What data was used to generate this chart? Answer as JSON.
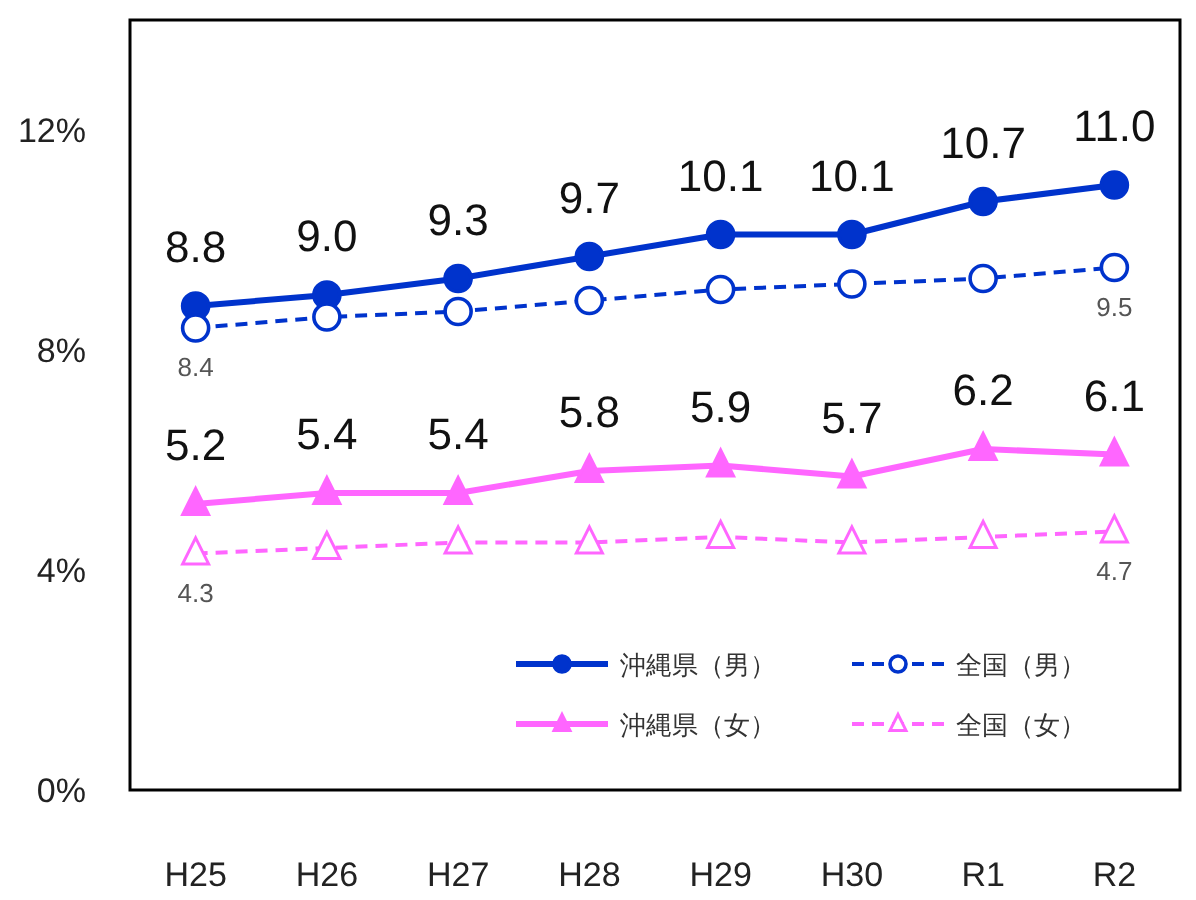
{
  "chart_data": {
    "type": "line",
    "categories": [
      "H25",
      "H26",
      "H27",
      "H28",
      "H29",
      "H30",
      "R1",
      "R2"
    ],
    "ylim": [
      0,
      14
    ],
    "yticks": [
      {
        "value": 0,
        "label": "0%"
      },
      {
        "value": 4,
        "label": "4%"
      },
      {
        "value": 8,
        "label": "8%"
      },
      {
        "value": 12,
        "label": "12%"
      }
    ],
    "grid": false,
    "legend": "bottom right",
    "series": [
      {
        "name": "沖縄県（男）",
        "color": "#0033cc",
        "marker": "circle",
        "line_style": "solid",
        "values": [
          8.8,
          9.0,
          9.3,
          9.7,
          10.1,
          10.1,
          10.7,
          11.0
        ],
        "value_labels": [
          "8.8",
          "9.0",
          "9.3",
          "9.7",
          "10.1",
          "10.1",
          "10.7",
          "11.0"
        ]
      },
      {
        "name": "全国（男）",
        "color": "#0033cc",
        "marker": "circle",
        "line_style": "dashed",
        "values": [
          8.4,
          8.6,
          8.7,
          8.9,
          9.1,
          9.2,
          9.3,
          9.5
        ],
        "value_labels": [
          "8.4",
          null,
          null,
          null,
          null,
          null,
          null,
          "9.5"
        ]
      },
      {
        "name": "沖縄県（女）",
        "color": "#ff66ff",
        "marker": "triangle",
        "line_style": "solid",
        "values": [
          5.2,
          5.4,
          5.4,
          5.8,
          5.9,
          5.7,
          6.2,
          6.1
        ],
        "value_labels": [
          "5.2",
          "5.4",
          "5.4",
          "5.8",
          "5.9",
          "5.7",
          "6.2",
          "6.1"
        ]
      },
      {
        "name": "全国（女）",
        "color": "#ff66ff",
        "marker": "triangle",
        "line_style": "dashed",
        "values": [
          4.3,
          4.4,
          4.5,
          4.5,
          4.6,
          4.5,
          4.6,
          4.7
        ],
        "value_labels": [
          "4.3",
          null,
          null,
          null,
          null,
          null,
          null,
          "4.7"
        ]
      }
    ]
  }
}
